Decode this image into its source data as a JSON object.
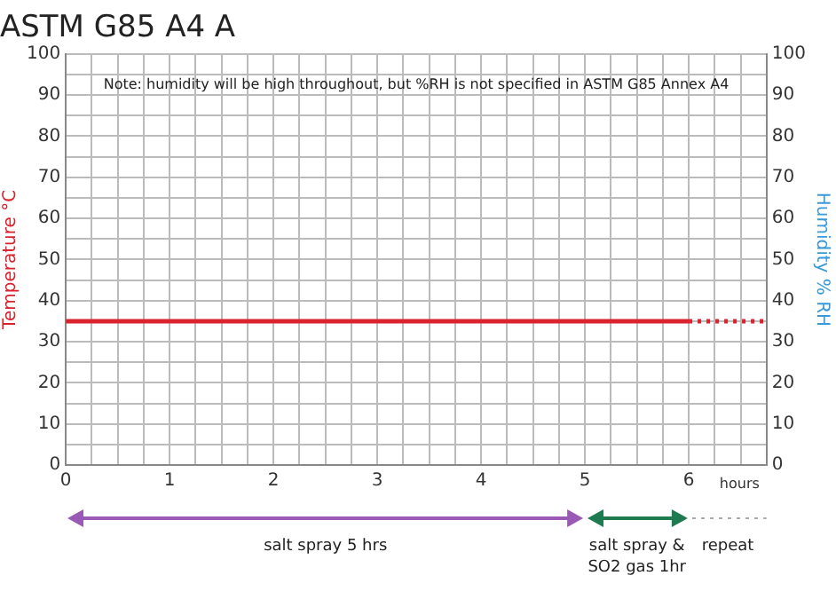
{
  "chart_data": {
    "type": "line",
    "title": "ASTM G85 A4 A",
    "xlabel": "hours",
    "ylabel": "Temperature °C",
    "y2label": "Humidity % RH",
    "series": [
      {
        "x": [
          0,
          6
        ],
        "values": [
          35,
          35
        ],
        "color": "#d9232e",
        "line_style": "solid"
      },
      {
        "x": [
          6,
          6.75
        ],
        "values": [
          35,
          35
        ],
        "color": "#d9232e",
        "line_style": "dotted"
      }
    ],
    "xlim": [
      0,
      6.75
    ],
    "xticks": [
      0,
      {
        "value": 0.25,
        "label": null
      },
      {
        "value": 0.5,
        "label": null
      },
      {
        "value": 0.75,
        "label": null
      },
      1,
      {
        "value": 1.25,
        "label": null
      },
      {
        "value": 1.5,
        "label": null
      },
      {
        "value": 1.75,
        "label": null
      },
      2,
      {
        "value": 2.25,
        "label": null
      },
      {
        "value": 2.5,
        "label": null
      },
      {
        "value": 2.75,
        "label": null
      },
      3,
      {
        "value": 3.25,
        "label": null
      },
      {
        "value": 3.5,
        "label": null
      },
      {
        "value": 3.75,
        "label": null
      },
      4,
      {
        "value": 4.25,
        "label": null
      },
      {
        "value": 4.5,
        "label": null
      },
      {
        "value": 4.75,
        "label": null
      },
      5,
      {
        "value": 5.25,
        "label": null
      },
      {
        "value": 5.5,
        "label": null
      },
      {
        "value": 5.75,
        "label": null
      },
      6,
      {
        "value": 6.25,
        "label": null
      },
      {
        "value": 6.5,
        "label": null
      },
      {
        "value": 6.75,
        "label": null
      }
    ],
    "ylim": [
      0,
      100
    ],
    "yticks": [
      0,
      {
        "value": 5,
        "label": null
      },
      10,
      {
        "value": 15,
        "label": null
      },
      20,
      {
        "value": 25,
        "label": null
      },
      30,
      {
        "value": 35,
        "label": null
      },
      40,
      {
        "value": 45,
        "label": null
      },
      50,
      {
        "value": 55,
        "label": null
      },
      60,
      {
        "value": 65,
        "label": null
      },
      70,
      {
        "value": 75,
        "label": null
      },
      80,
      {
        "value": 85,
        "label": null
      },
      90,
      {
        "value": 95,
        "label": null
      },
      100
    ],
    "y2lim": [
      0,
      100
    ],
    "y2ticks": [
      0,
      10,
      20,
      30,
      40,
      50,
      60,
      70,
      80,
      90,
      100
    ],
    "grid": true,
    "annotations": [
      "Note: humidity will be high throughout, but %RH is not specified in ASTM G85 Annex A4",
      "salt spray 5 hrs",
      "salt spray & SO2 gas 1hr",
      "repeat"
    ]
  }
}
